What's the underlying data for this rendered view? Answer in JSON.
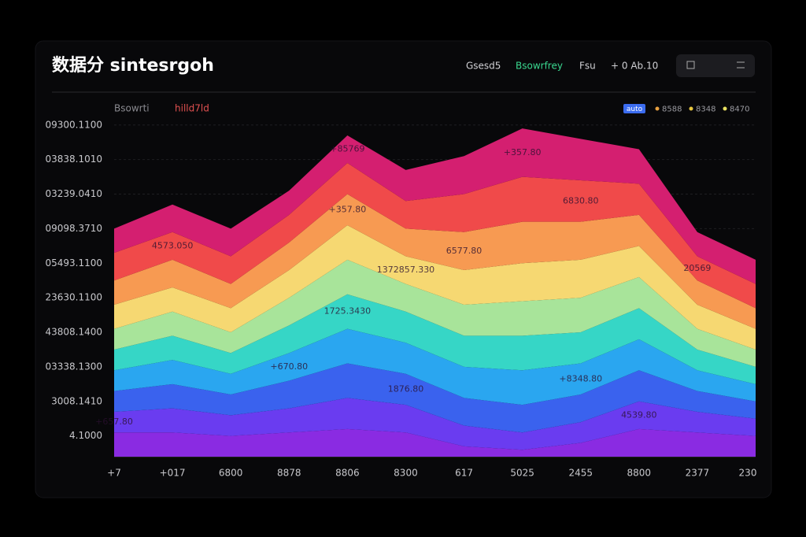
{
  "header": {
    "title": "数据分 sintesrgoh",
    "tabs": [
      "Gsesd5",
      "Bsowrfrey",
      "Fsu",
      "+ 0 Ab.10"
    ],
    "active_tab": 1
  },
  "chart_data": {
    "type": "stacked_area",
    "subtitle_left": "Bsowrti",
    "subtitle_right": "hilld7ld",
    "legend_items": [
      {
        "label": "auto",
        "color": "#3b6cf0"
      },
      {
        "label": "8588",
        "color": "#e8a040"
      },
      {
        "label": "8348",
        "color": "#e8c840"
      },
      {
        "label": "8470",
        "color": "#e8e060"
      }
    ],
    "categories": [
      "+7",
      "+017",
      "6800",
      "8878",
      "8806",
      "8300",
      "617",
      "5025",
      "2455",
      "8800",
      "2377",
      "230"
    ],
    "ylim": [
      0.4,
      10.2
    ],
    "yticks": [
      {
        "value": 1,
        "label": "4.1000"
      },
      {
        "value": 2,
        "label": "3008.1410"
      },
      {
        "value": 3,
        "label": "03338.1300"
      },
      {
        "value": 4,
        "label": "43808.1400"
      },
      {
        "value": 5,
        "label": "23630.1100"
      },
      {
        "value": 6,
        "label": "05493.1100"
      },
      {
        "value": 7,
        "label": "09098.3710"
      },
      {
        "value": 8,
        "label": "03239.0410"
      },
      {
        "value": 9,
        "label": "03838.1010"
      },
      {
        "value": 10,
        "label": "09300.1100"
      }
    ],
    "grid": true,
    "series": [
      {
        "color": "#8a2be2",
        "values": [
          0.7,
          0.7,
          0.6,
          0.7,
          0.8,
          0.7,
          0.3,
          0.2,
          0.4,
          0.8,
          0.7,
          0.6
        ]
      },
      {
        "color": "#6a3cf0",
        "values": [
          0.6,
          0.7,
          0.6,
          0.7,
          0.9,
          0.8,
          0.6,
          0.5,
          0.6,
          0.8,
          0.6,
          0.5
        ]
      },
      {
        "color": "#3a62ee",
        "values": [
          0.6,
          0.7,
          0.6,
          0.8,
          1.0,
          0.9,
          0.8,
          0.8,
          0.8,
          0.9,
          0.6,
          0.5
        ]
      },
      {
        "color": "#2aa6f0",
        "values": [
          0.6,
          0.7,
          0.6,
          0.8,
          1.0,
          0.9,
          0.9,
          1.0,
          0.9,
          0.9,
          0.6,
          0.5
        ]
      },
      {
        "color": "#36d6c6",
        "values": [
          0.6,
          0.7,
          0.6,
          0.8,
          1.0,
          0.9,
          0.9,
          1.0,
          0.9,
          0.9,
          0.6,
          0.5
        ]
      },
      {
        "color": "#a8e49a",
        "values": [
          0.6,
          0.7,
          0.6,
          0.8,
          1.0,
          0.8,
          0.9,
          1.0,
          1.0,
          0.9,
          0.6,
          0.5
        ]
      },
      {
        "color": "#f6d872",
        "values": [
          0.7,
          0.7,
          0.7,
          0.8,
          1.0,
          0.8,
          1.0,
          1.1,
          1.1,
          0.9,
          0.7,
          0.6
        ]
      },
      {
        "color": "#f79a52",
        "values": [
          0.7,
          0.8,
          0.7,
          0.8,
          0.9,
          0.8,
          1.1,
          1.2,
          1.1,
          0.9,
          0.7,
          0.6
        ]
      },
      {
        "color": "#f04a4a",
        "values": [
          0.8,
          0.8,
          0.8,
          0.8,
          0.9,
          0.8,
          1.1,
          1.3,
          1.2,
          0.9,
          0.7,
          0.7
        ]
      },
      {
        "color": "#d41f70",
        "values": [
          0.7,
          0.8,
          0.8,
          0.7,
          0.8,
          0.9,
          1.1,
          1.4,
          1.2,
          1.0,
          0.7,
          0.7
        ]
      }
    ],
    "annotations": [
      {
        "text": "+85769",
        "category": 4,
        "series": 9
      },
      {
        "text": "+357.80",
        "category": 7,
        "series": 9
      },
      {
        "text": "4573.050",
        "category": 1,
        "series": 8
      },
      {
        "text": "+357.80",
        "category": 4,
        "series": 7
      },
      {
        "text": "1372857.330",
        "category": 5,
        "series": 6
      },
      {
        "text": "6577.80",
        "category": 6,
        "series": 7
      },
      {
        "text": "1725.3430",
        "category": 4,
        "series": 4
      },
      {
        "text": "+670.80",
        "category": 3,
        "series": 3
      },
      {
        "text": "1876.80",
        "category": 5,
        "series": 2
      },
      {
        "text": "+8348.80",
        "category": 8,
        "series": 3
      },
      {
        "text": "+657.80",
        "category": 0,
        "series": 1
      },
      {
        "text": "4539.80",
        "category": 9,
        "series": 1
      },
      {
        "text": "20569",
        "category": 10,
        "series": 8
      },
      {
        "text": "6830.80",
        "category": 8,
        "series": 8
      }
    ]
  }
}
